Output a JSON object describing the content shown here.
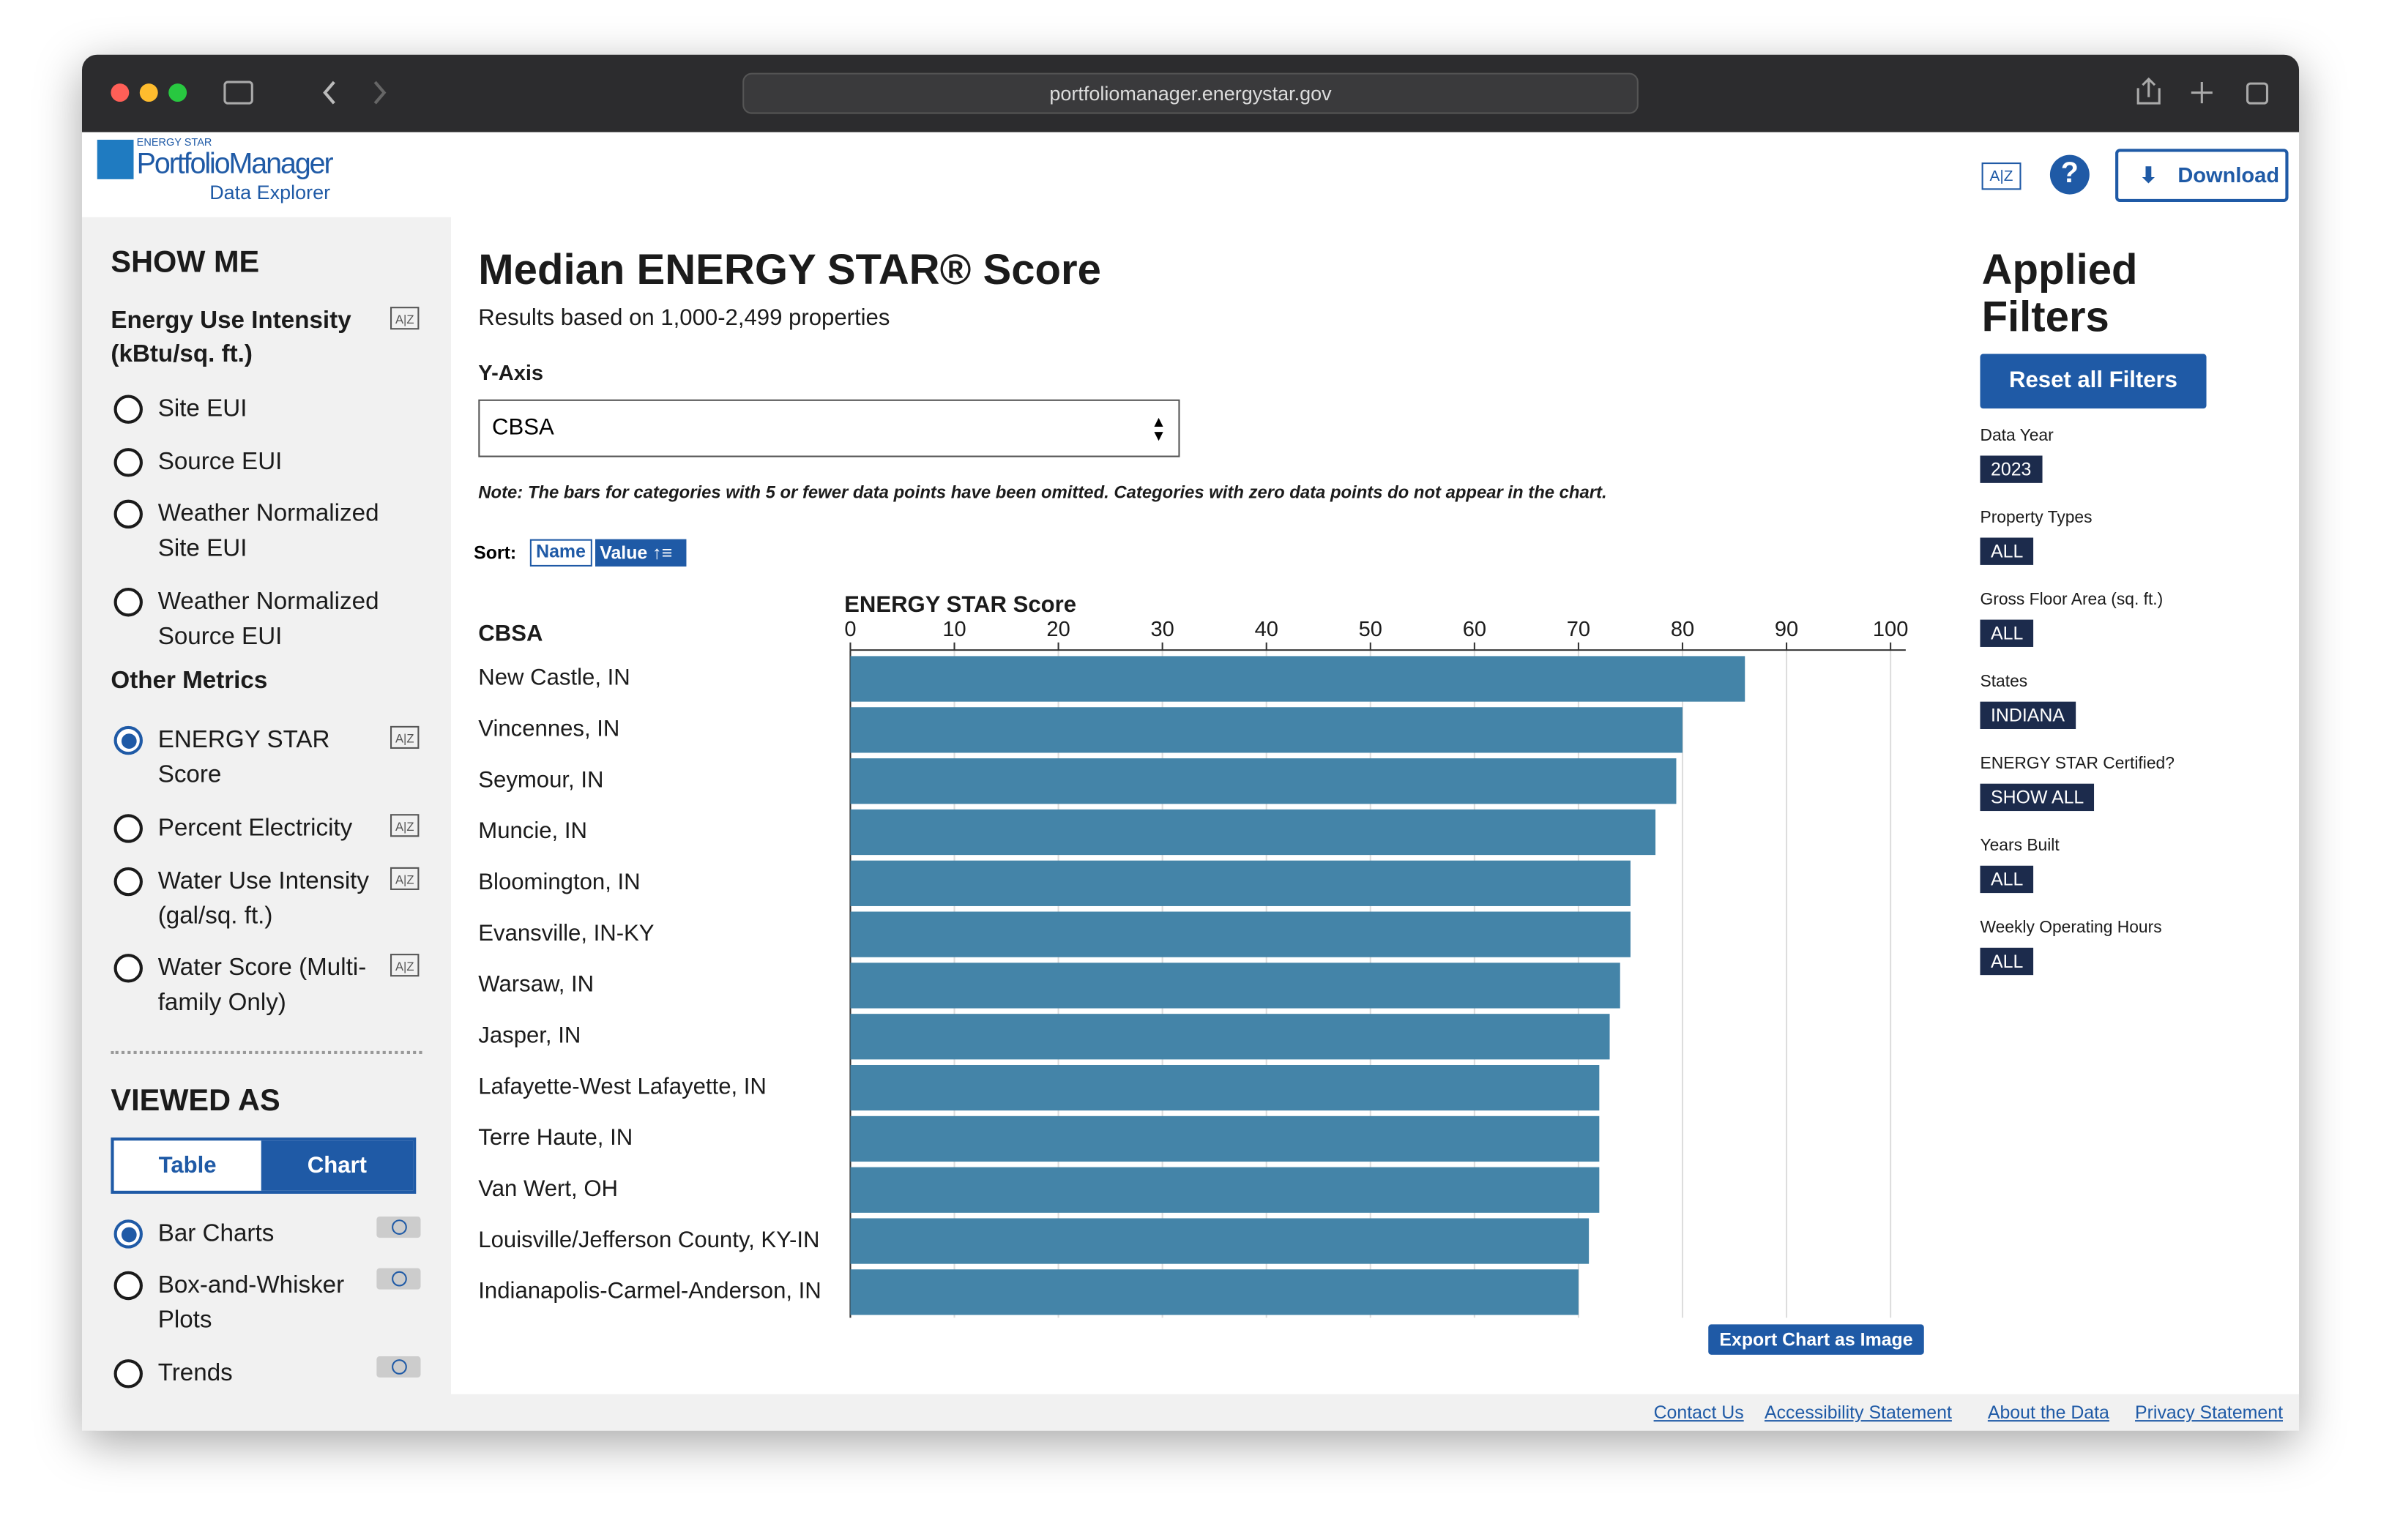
{
  "browser": {
    "url": "portfoliomanager.energystar.gov"
  },
  "header": {
    "logo_top": "ENERGY STAR",
    "logo_main": "PortfolioManager",
    "logo_sub": "Data Explorer",
    "download": "Download"
  },
  "sidebar": {
    "show_me": "SHOW ME",
    "eui_heading": "Energy Use Intensity (kBtu/sq. ft.)",
    "eui_options": [
      "Site EUI",
      "Source EUI",
      "Weather Normalized Site EUI",
      "Weather Normalized Source EUI"
    ],
    "other_heading": "Other Metrics",
    "other_options": [
      "ENERGY STAR Score",
      "Percent Electricity",
      "Water Use Intensity (gal/sq. ft.)",
      "Water Score (Multi-family Only)"
    ],
    "viewed_as": "VIEWED AS",
    "view_tabs": [
      "Table",
      "Chart"
    ],
    "chart_types": [
      "Bar Charts",
      "Box-and-Whisker Plots",
      "Trends"
    ]
  },
  "main": {
    "title": "Median ENERGY STAR® Score",
    "subtitle": "Results based on 1,000-2,499 properties",
    "yaxis_label": "Y-Axis",
    "yaxis_select": "CBSA",
    "note": "Note: The bars for categories with 5 or fewer data points have been omitted. Categories with zero data points do not appear in the chart.",
    "sort_label": "Sort:",
    "sort_options": [
      "Name",
      "Value"
    ],
    "export": "Export Chart as Image"
  },
  "chart_data": {
    "type": "bar",
    "orientation": "horizontal",
    "category_label": "CBSA",
    "x_label": "ENERGY STAR Score",
    "categories": [
      "New Castle, IN",
      "Vincennes, IN",
      "Seymour, IN",
      "Muncie, IN",
      "Bloomington, IN",
      "Evansville, IN-KY",
      "Warsaw, IN",
      "Jasper, IN",
      "Lafayette-West Lafayette, IN",
      "Terre Haute, IN",
      "Van Wert, OH",
      "Louisville/Jefferson County, KY-IN",
      "Indianapolis-Carmel-Anderson, IN"
    ],
    "values": [
      86,
      80,
      79.4,
      77.4,
      75,
      75,
      74,
      73,
      72,
      72,
      72,
      71,
      70
    ],
    "color": "#4484a8",
    "xlim": [
      0,
      100
    ],
    "xticks": [
      0,
      10,
      20,
      30,
      40,
      50,
      60,
      70,
      80,
      90,
      100
    ],
    "grid": true
  },
  "filters": {
    "title": "Applied Filters",
    "reset": "Reset all Filters",
    "items": [
      {
        "label": "Data Year",
        "value": "2023"
      },
      {
        "label": "Property Types",
        "value": "ALL"
      },
      {
        "label": "Gross Floor Area (sq. ft.)",
        "value": "ALL"
      },
      {
        "label": "States",
        "value": "INDIANA"
      },
      {
        "label": "ENERGY STAR Certified?",
        "value": "SHOW ALL"
      },
      {
        "label": "Years Built",
        "value": "ALL"
      },
      {
        "label": "Weekly Operating Hours",
        "value": "ALL"
      }
    ]
  },
  "footer": {
    "links": [
      "Contact Us",
      "Accessibility Statement",
      "About the Data",
      "Privacy Statement"
    ]
  }
}
